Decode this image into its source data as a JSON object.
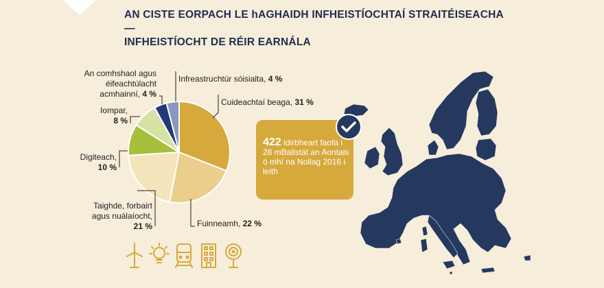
{
  "title_lines": [
    "AN CISTE EORPACH LE hAGHAIDH INFHEISTÍOCHTAÍ STRAITÉISEACHA —",
    "INFHEISTÍOCHT DE RÉIR EARNÁLA"
  ],
  "chart_data": {
    "type": "pie",
    "slices": [
      {
        "name": "Cuideachtaí beaga",
        "value": 31,
        "label_text": "Cuideachtaí beaga,",
        "pct_text": "31 %",
        "color": "#d6a93d"
      },
      {
        "name": "Fuinneamh",
        "value": 22,
        "label_text": "Fuinneamh,",
        "pct_text": "22 %",
        "color": "#ebcd8c"
      },
      {
        "name": "Taighde, forbairt agus nuálaíocht",
        "value": 21,
        "label_text": "Taighde, forbairt agus nuálaíocht,",
        "pct_text": "21 %",
        "color": "#f4e4bb"
      },
      {
        "name": "Digiteach",
        "value": 10,
        "label_text": "Digiteach,",
        "pct_text": "10 %",
        "color": "#a6c03d"
      },
      {
        "name": "Iompar",
        "value": 8,
        "label_text": "Iompar,",
        "pct_text": "8 %",
        "color": "#d6e2a4"
      },
      {
        "name": "An comhshaol agus éifeachtúlacht acmhainní",
        "value": 4,
        "label_text": "An comhshaol agus éifeachtúlacht acmhainní,",
        "pct_text": "4 %",
        "color": "#233a78"
      },
      {
        "name": "Infreastruchtúr sóisialta",
        "value": 4,
        "label_text": "Infreastruchtúr sóisialta,",
        "pct_text": "4 %",
        "color": "#8a97bf"
      }
    ]
  },
  "callout": {
    "big_number": "422",
    "text": "idirbheart faofa i 28 mBallstát an Aontais ó mhí na Nollag 2016 i leith"
  },
  "icons": [
    "wind-turbine-icon",
    "lightbulb-icon",
    "train-icon",
    "building-icon",
    "satellite-dish-icon"
  ],
  "colors": {
    "background": "#f6edda",
    "navy": "#1f2d4e",
    "map": "#25395f",
    "gold": "#d6a93d"
  }
}
